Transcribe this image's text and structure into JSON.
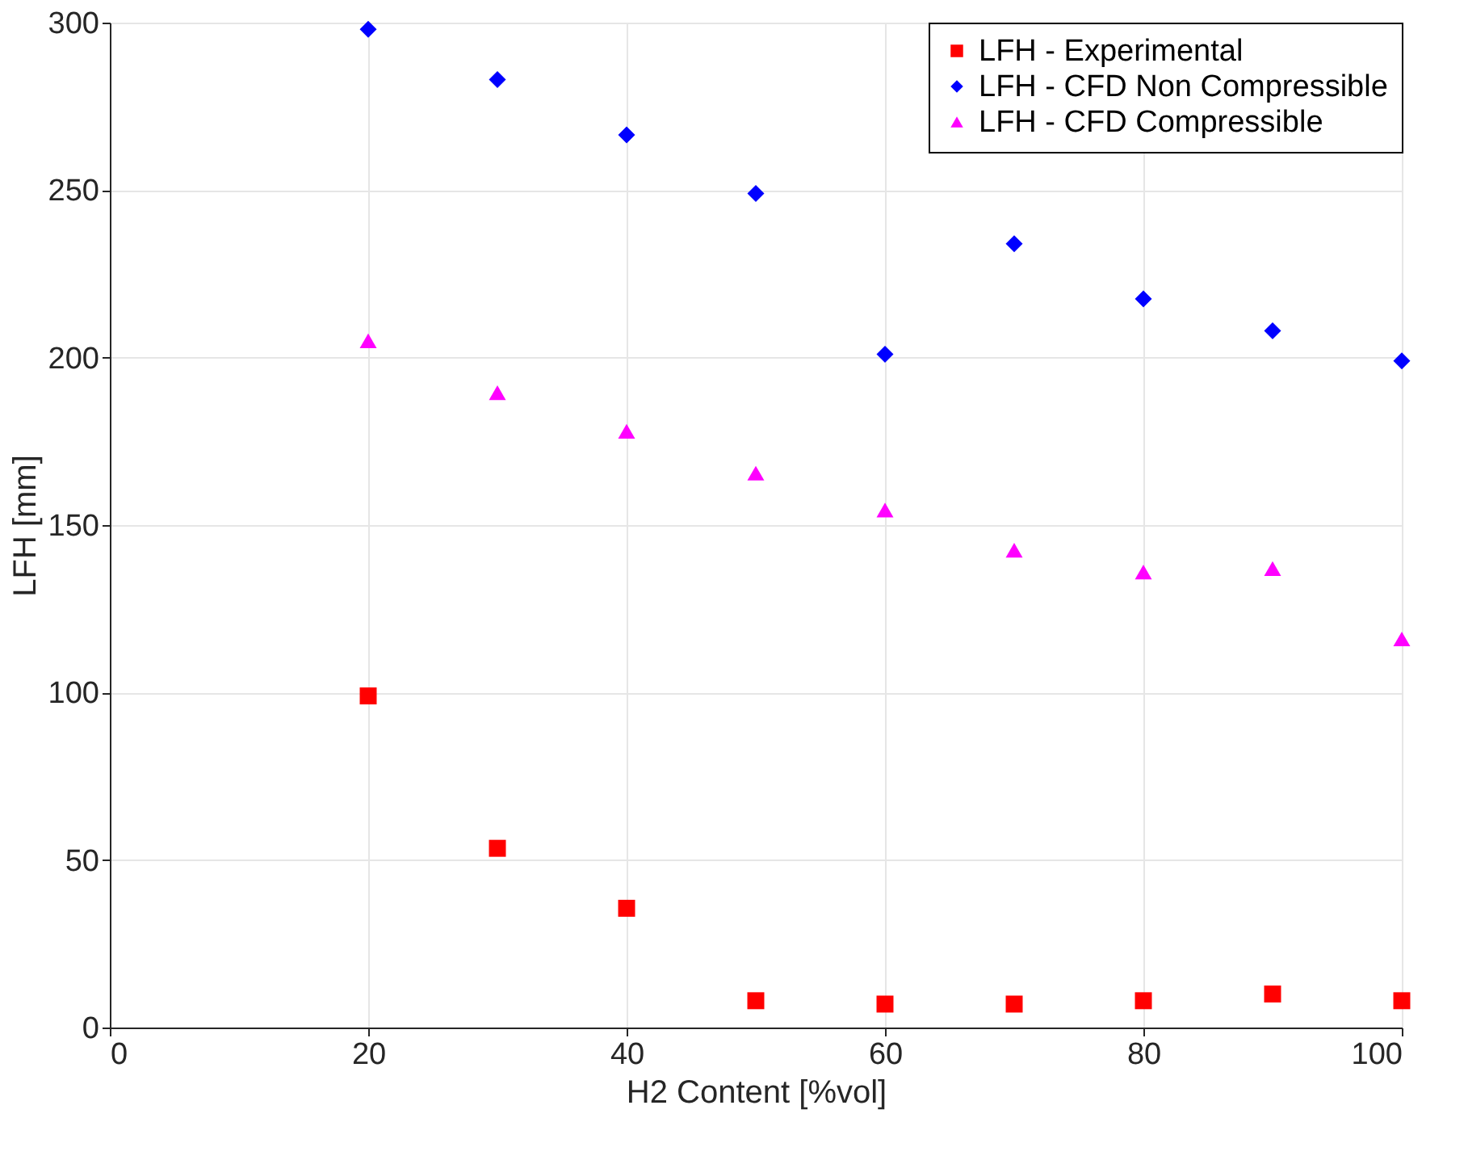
{
  "chart_data": {
    "type": "scatter",
    "xlabel": "H2 Content [%vol]",
    "ylabel": "LFH [mm]",
    "x": [
      20,
      30,
      40,
      50,
      60,
      70,
      80,
      90,
      100
    ],
    "xlim": [
      0,
      100
    ],
    "xticks": [
      0,
      20,
      40,
      60,
      80,
      100
    ],
    "ylim": [
      0,
      300
    ],
    "yticks": [
      0,
      50,
      100,
      150,
      200,
      250,
      300
    ],
    "grid": true,
    "legend": "top right",
    "series": [
      {
        "name": "LFH - Experimental",
        "color": "#ff0000",
        "marker": "square",
        "values": [
          99,
          53.5,
          35.6,
          8,
          7,
          7,
          8,
          10,
          8
        ]
      },
      {
        "name": "LFH - CFD Non Compressible",
        "color": "#0000ff",
        "marker": "diamond",
        "values": [
          298,
          283,
          266.5,
          249,
          201,
          234,
          217.5,
          208,
          199
        ]
      },
      {
        "name": "LFH - CFD Compressible",
        "color": "#ff00ff",
        "marker": "triangle",
        "values": [
          205,
          189.5,
          178,
          165.5,
          154.5,
          142.5,
          136,
          137,
          116
        ]
      }
    ]
  }
}
